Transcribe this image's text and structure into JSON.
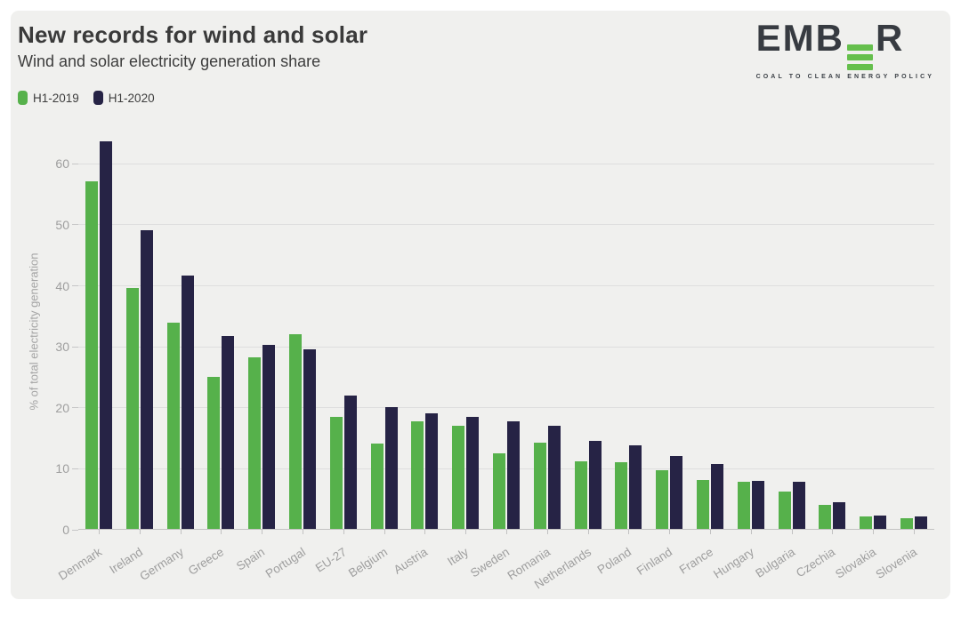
{
  "header": {
    "title": "New records for wind and solar",
    "subtitle": "Wind and solar electricity generation share"
  },
  "logo": {
    "text_left": "EMB",
    "text_right": "R",
    "green_e_icon": "three-green-bars-E",
    "tagline": "COAL TO CLEAN ENERGY POLICY",
    "green": "#65bf4c",
    "dark": "#373b41"
  },
  "colors": {
    "background_card": "#f0f0ee",
    "page_background": "#ffffff",
    "series_h1_2019": "#56b14b",
    "series_h1_2020": "#262345",
    "axis_text": "#9e9e9e",
    "gridline": "#dedede"
  },
  "chart_data": {
    "type": "bar",
    "title": "New records for wind and solar",
    "subtitle": "Wind and solar electricity generation share",
    "xlabel": "",
    "ylabel": "% of total electricity generation",
    "ylim": [
      0,
      65
    ],
    "yticks": [
      0,
      10,
      20,
      30,
      40,
      50,
      60
    ],
    "grid": true,
    "legend_position": "top-left",
    "categories": [
      "Denmark",
      "Ireland",
      "Germany",
      "Greece",
      "Spain",
      "Portugal",
      "EU-27",
      "Belgium",
      "Austria",
      "Italy",
      "Sweden",
      "Romania",
      "Netherlands",
      "Poland",
      "Finland",
      "France",
      "Hungary",
      "Bulgaria",
      "Czechia",
      "Slovakia",
      "Slovenia"
    ],
    "series": [
      {
        "name": "H1-2019",
        "color": "#56b14b",
        "values": [
          57,
          39.5,
          33.8,
          24.9,
          28.2,
          31.9,
          18.3,
          14,
          17.7,
          16.9,
          12.4,
          14.2,
          11.1,
          11,
          9.6,
          8,
          7.7,
          6.1,
          4,
          2,
          1.8
        ]
      },
      {
        "name": "H1-2020",
        "color": "#262345",
        "values": [
          63.5,
          49,
          41.5,
          31.6,
          30.2,
          29.5,
          21.9,
          19.9,
          19,
          18.3,
          17.6,
          16.9,
          14.5,
          13.7,
          12,
          10.6,
          7.9,
          7.7,
          4.4,
          2.2,
          2.1
        ]
      }
    ]
  }
}
